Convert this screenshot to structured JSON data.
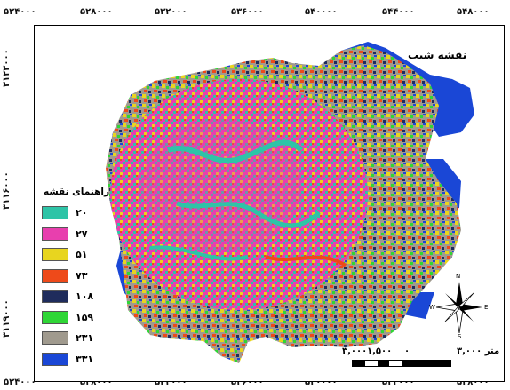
{
  "map": {
    "title": "نقشه شیب",
    "x_ticks": [
      "۵۲۴۰۰۰",
      "۵۲۸۰۰۰",
      "۵۳۲۰۰۰",
      "۵۳۶۰۰۰",
      "۵۴۰۰۰۰",
      "۵۴۴۰۰۰",
      "۵۴۸۰۰۰"
    ],
    "y_ticks": [
      "۳۱۲۳۰۰۰",
      "۳۱۱۶۰۰۰",
      "۳۱۱۹۰۰۰"
    ],
    "legend": {
      "title": "راهنمای نقشه",
      "items": [
        {
          "label": "۲۰",
          "color": "#2ec4a7"
        },
        {
          "label": "۲۷",
          "color": "#e83fae"
        },
        {
          "label": "۵۱",
          "color": "#e8d51f"
        },
        {
          "label": "۷۳",
          "color": "#ee4a1a"
        },
        {
          "label": "۱۰۸",
          "color": "#1f2c5c"
        },
        {
          "label": "۱۵۹",
          "color": "#2fd636"
        },
        {
          "label": "۲۳۱",
          "color": "#a09a8e"
        },
        {
          "label": "۳۳۱",
          "color": "#1a47d6"
        }
      ]
    },
    "scale": {
      "labels": [
        "۳,۰۰۰",
        "۱,۵۰۰",
        "۰",
        "۳,۰۰۰ متر"
      ]
    },
    "north_arrow": {
      "n": "N",
      "s": "S",
      "e": "E",
      "w": "W"
    }
  }
}
